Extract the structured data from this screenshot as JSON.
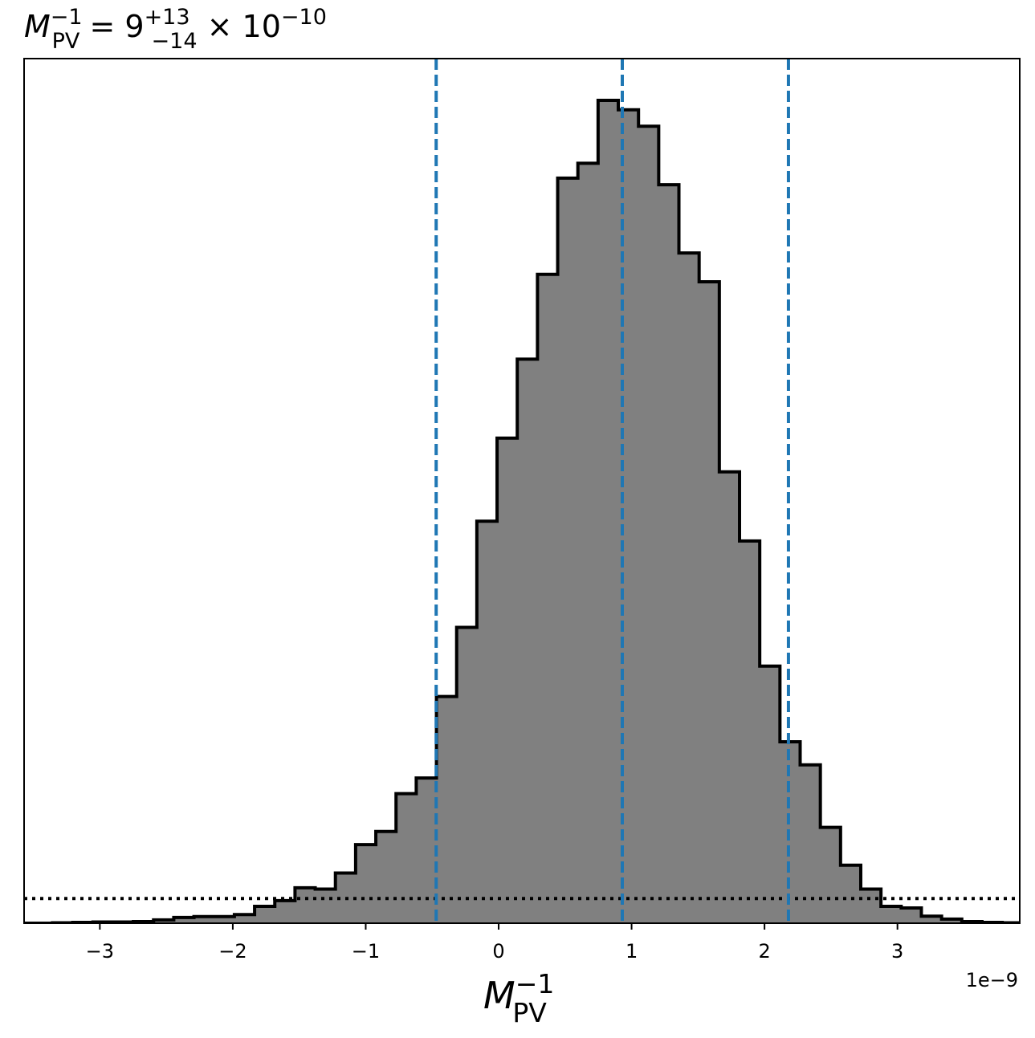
{
  "chart_data": {
    "type": "bar",
    "title": {
      "base": "M",
      "sup": "−1",
      "sub": "PV",
      "equals": " = 9",
      "upper": "+13",
      "lower": "−14",
      "times": " × 10",
      "exponent": "−10"
    },
    "xlabel": {
      "base": "M",
      "sup": "−1",
      "sub": "PV"
    },
    "x_offset_label": "1e−9",
    "xlim": [
      -3.57,
      3.92
    ],
    "ylim": [
      0,
      1.0
    ],
    "xticks": [
      {
        "value": -3,
        "label": "−3"
      },
      {
        "value": -2,
        "label": "−2"
      },
      {
        "value": -1,
        "label": "−1"
      },
      {
        "value": 0,
        "label": "0"
      },
      {
        "value": 1,
        "label": "1"
      },
      {
        "value": 2,
        "label": "2"
      },
      {
        "value": 3,
        "label": "3"
      }
    ],
    "bins": {
      "edges": [
        -3.66,
        -3.508,
        -3.356,
        -3.204,
        -3.052,
        -2.9,
        -2.748,
        -2.596,
        -2.444,
        -2.292,
        -2.14,
        -1.988,
        -1.836,
        -1.684,
        -1.532,
        -1.38,
        -1.228,
        -1.076,
        -0.924,
        -0.772,
        -0.62,
        -0.468,
        -0.316,
        -0.164,
        -0.012,
        0.14,
        0.292,
        0.444,
        0.596,
        0.748,
        0.9,
        1.052,
        1.204,
        1.356,
        1.508,
        1.66,
        1.812,
        1.964,
        2.116,
        2.268,
        2.42,
        2.572,
        2.724,
        2.876,
        3.028,
        3.18,
        3.332,
        3.484,
        3.636,
        3.788,
        3.94
      ],
      "counts": [
        0.0,
        0.0,
        0.0005,
        0.001,
        0.0015,
        0.0015,
        0.002,
        0.004,
        0.007,
        0.008,
        0.008,
        0.0105,
        0.0205,
        0.0275,
        0.043,
        0.0415,
        0.061,
        0.0955,
        0.1115,
        0.1575,
        0.1765,
        0.2755,
        0.3595,
        0.4885,
        0.5895,
        0.6855,
        0.7885,
        0.9055,
        0.9235,
        1.0,
        0.9885,
        0.9685,
        0.8975,
        0.8145,
        0.7795,
        0.5485,
        0.4645,
        0.3125,
        0.2205,
        0.1925,
        0.1165,
        0.0705,
        0.0415,
        0.0205,
        0.0185,
        0.0085,
        0.005,
        0.002,
        0.001,
        0.0005
      ],
      "fill_color": "#808080",
      "edge_color": "#000000"
    },
    "vlines": {
      "x": [
        -0.47,
        0.93,
        2.18
      ],
      "color": "#1f77b4",
      "style": "dashed"
    },
    "hline": {
      "y": 0.03,
      "color": "#000000",
      "style": "dotted"
    },
    "grid": false,
    "yticks_shown": false
  }
}
